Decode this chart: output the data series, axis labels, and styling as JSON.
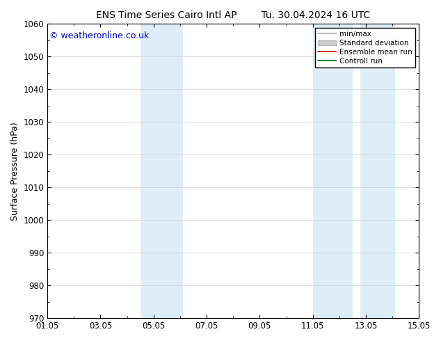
{
  "title_left": "ENS Time Series Cairo Intl AP",
  "title_right": "Tu. 30.04.2024 16 UTC",
  "ylabel": "Surface Pressure (hPa)",
  "ylim": [
    970,
    1060
  ],
  "yticks": [
    970,
    980,
    990,
    1000,
    1010,
    1020,
    1030,
    1040,
    1050,
    1060
  ],
  "xlim_start": 0,
  "xlim_end": 14,
  "xtick_positions": [
    0,
    2,
    4,
    6,
    8,
    10,
    12,
    14
  ],
  "xtick_labels": [
    "01.05",
    "03.05",
    "05.05",
    "07.05",
    "09.05",
    "11.05",
    "13.05",
    "15.05"
  ],
  "copyright_text": "© weatheronline.co.uk",
  "shaded_bands": [
    {
      "xmin": 3.5,
      "xmax": 5.1
    },
    {
      "xmin": 10.0,
      "xmax": 11.5
    },
    {
      "xmin": 11.8,
      "xmax": 13.1
    }
  ],
  "shade_color": "#ddeef8",
  "background_color": "#ffffff",
  "legend_items": [
    {
      "label": "min/max",
      "color": "#aaaaaa",
      "lw": 1.2
    },
    {
      "label": "Standard deviation",
      "color": "#cccccc",
      "lw": 6
    },
    {
      "label": "Ensemble mean run",
      "color": "#dd0000",
      "lw": 1.2
    },
    {
      "label": "Controll run",
      "color": "#006600",
      "lw": 1.2
    }
  ],
  "title_fontsize": 10,
  "tick_fontsize": 8.5,
  "ylabel_fontsize": 9,
  "copyright_fontsize": 9
}
